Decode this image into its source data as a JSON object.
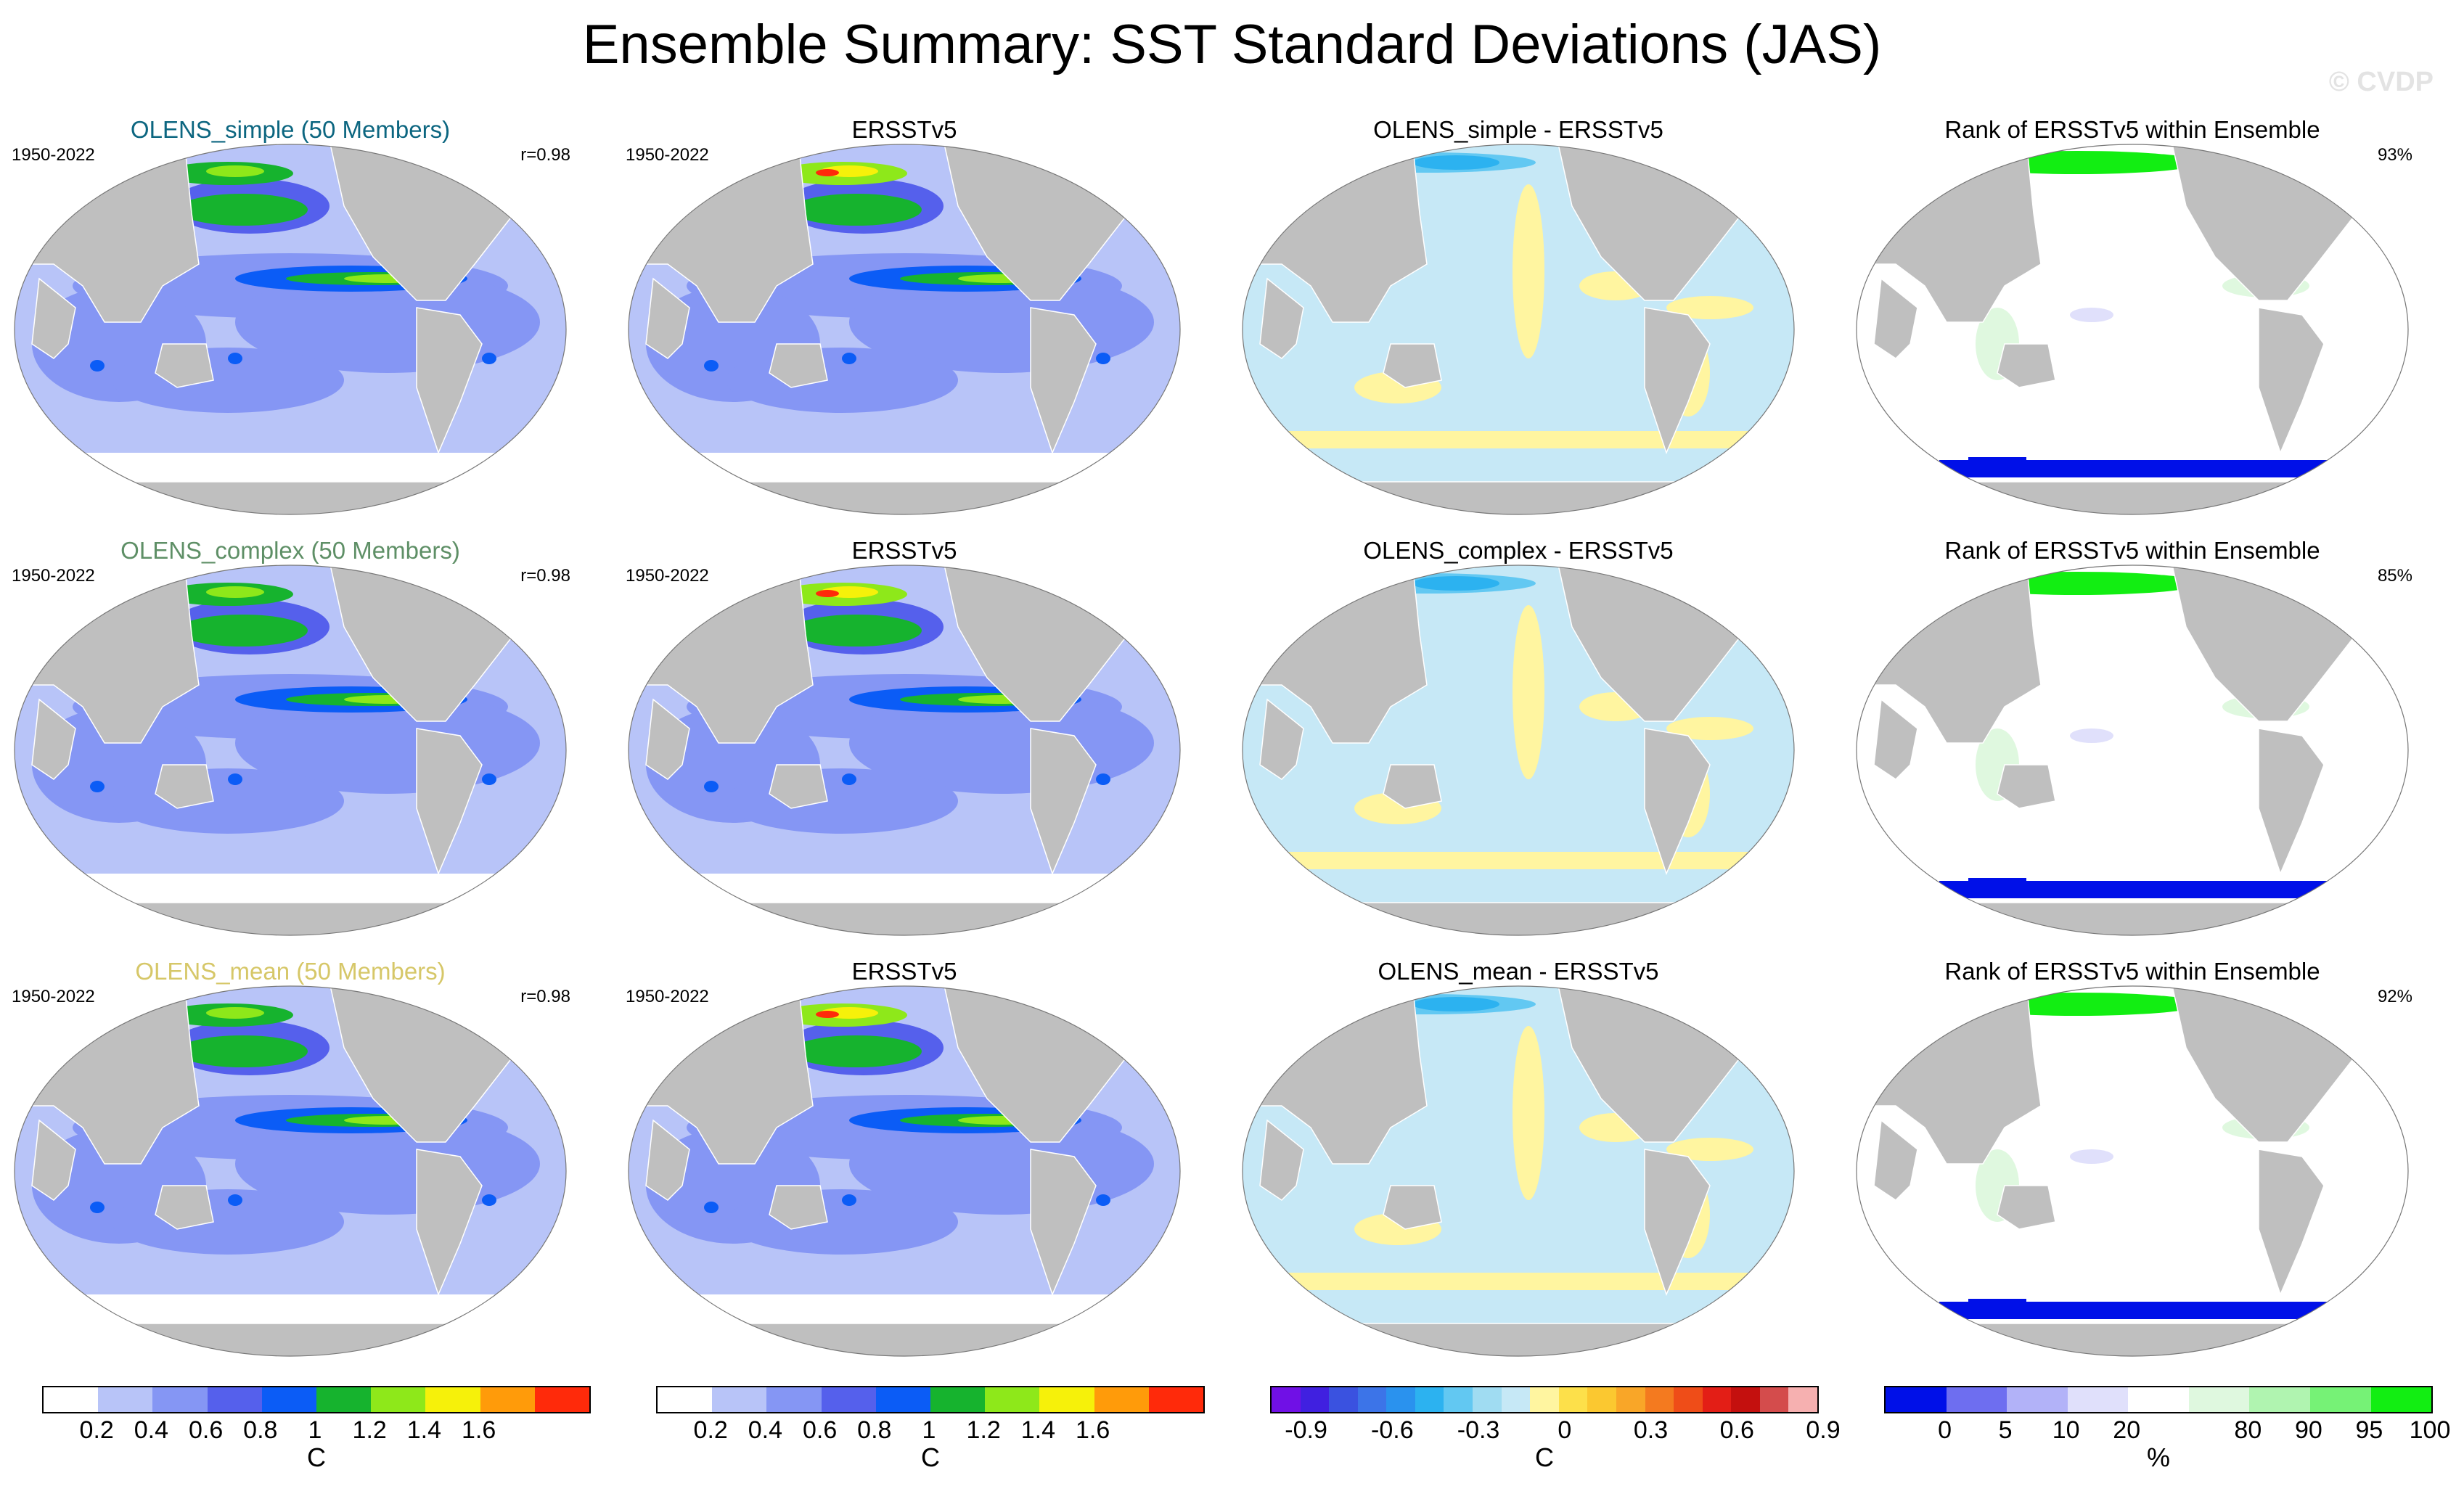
{
  "title": "Ensemble Summary: SST Standard Deviations (JAS)",
  "watermark": "© CVDP",
  "colors": {
    "land": "#bfbfbf",
    "ocean_edge": "#777777",
    "title_simple": "#0c6680",
    "title_complex": "#5e8f66",
    "title_mean": "#d6c768",
    "sd": [
      "#ffffff",
      "#b8c4f8",
      "#8596f4",
      "#5560ec",
      "#0b5cf6",
      "#16b32e",
      "#8ee81a",
      "#f6f10a",
      "#ff9b0a",
      "#ff2a0a"
    ],
    "diff": [
      "#7010e6",
      "#4020e0",
      "#3a52e0",
      "#3c74e8",
      "#2a92ee",
      "#2cb2f0",
      "#62c8f2",
      "#a0dcf2",
      "#c6e8f6",
      "#fff5a0",
      "#fde04a",
      "#fbc830",
      "#f9a628",
      "#f47a1f",
      "#ef4d18",
      "#e31e16",
      "#c4100e",
      "#d44c4c",
      "#f6b0b0"
    ],
    "rank": [
      "#0010e8",
      "#6e6ef0",
      "#b2b2f8",
      "#e0e0fb",
      "#ffffff",
      "#dff8df",
      "#b0f4b0",
      "#76f276",
      "#12ee12"
    ]
  },
  "rows": [
    {
      "model": {
        "title": "OLENS_simple (50 Members)",
        "years": "1950-2022",
        "r": "r=0.98",
        "title_color": "#0c6680"
      },
      "obs": {
        "title": "ERSSTv5",
        "years": "1950-2022"
      },
      "diff": {
        "title": "OLENS_simple - ERSSTv5"
      },
      "rank": {
        "title": "Rank of ERSSTv5 within Ensemble",
        "pct": "93%"
      }
    },
    {
      "model": {
        "title": "OLENS_complex (50 Members)",
        "years": "1950-2022",
        "r": "r=0.98",
        "title_color": "#5e8f66"
      },
      "obs": {
        "title": "ERSSTv5",
        "years": "1950-2022"
      },
      "diff": {
        "title": "OLENS_complex - ERSSTv5"
      },
      "rank": {
        "title": "Rank of ERSSTv5 within Ensemble",
        "pct": "85%"
      }
    },
    {
      "model": {
        "title": "OLENS_mean (50 Members)",
        "years": "1950-2022",
        "r": "r=0.98",
        "title_color": "#d6c768"
      },
      "obs": {
        "title": "ERSSTv5",
        "years": "1950-2022"
      },
      "diff": {
        "title": "OLENS_mean - ERSSTv5"
      },
      "rank": {
        "title": "Rank of ERSSTv5 within Ensemble",
        "pct": "92%"
      }
    }
  ],
  "colorbars": [
    {
      "ticks": [
        "0.2",
        "0.4",
        "0.6",
        "0.8",
        "1",
        "1.2",
        "1.4",
        "1.6"
      ],
      "unit": "C"
    },
    {
      "ticks": [
        "0.2",
        "0.4",
        "0.6",
        "0.8",
        "1",
        "1.2",
        "1.4",
        "1.6"
      ],
      "unit": "C"
    },
    {
      "ticks": [
        "-0.9",
        "-0.6",
        "-0.3",
        "0",
        "0.3",
        "0.6",
        "0.9"
      ],
      "unit": "C"
    },
    {
      "ticks": [
        "0",
        "5",
        "10",
        "20",
        "80",
        "90",
        "95",
        "100"
      ],
      "unit": "%"
    }
  ],
  "chart_data": [
    {
      "type": "heatmap",
      "title": "OLENS_simple (50 Members)",
      "period": "1950-2022",
      "pattern_correlation": 0.98,
      "variable": "SST standard deviation (JAS)",
      "units": "C",
      "levels": [
        0.2,
        0.4,
        0.6,
        0.8,
        1.0,
        1.2,
        1.4,
        1.6
      ],
      "features": {
        "central_eastern_equatorial_pacific_max": 1.2,
        "north_pacific_max": 1.0,
        "north_atlantic_max": 1.0,
        "southern_ocean": 0.2
      }
    },
    {
      "type": "heatmap",
      "title": "ERSSTv5",
      "period": "1950-2022",
      "variable": "SST standard deviation (JAS)",
      "units": "C",
      "levels": [
        0.2,
        0.4,
        0.6,
        0.8,
        1.0,
        1.2,
        1.4,
        1.6
      ],
      "features": {
        "central_eastern_equatorial_pacific_max": 1.2,
        "arctic_coastal_max": 1.6
      }
    },
    {
      "type": "heatmap",
      "title": "OLENS_simple - ERSSTv5",
      "units": "C",
      "levels": [
        -0.9,
        -0.6,
        -0.3,
        0,
        0.3,
        0.6,
        0.9
      ]
    },
    {
      "type": "heatmap",
      "title": "Rank of ERSSTv5 within Ensemble",
      "units": "%",
      "levels": [
        0,
        5,
        10,
        20,
        80,
        90,
        95,
        100
      ],
      "percent_within_ensemble_range": 93
    },
    {
      "type": "heatmap",
      "title": "OLENS_complex (50 Members)",
      "period": "1950-2022",
      "pattern_correlation": 0.98,
      "units": "C"
    },
    {
      "type": "heatmap",
      "title": "ERSSTv5",
      "period": "1950-2022",
      "units": "C"
    },
    {
      "type": "heatmap",
      "title": "OLENS_complex - ERSSTv5",
      "units": "C"
    },
    {
      "type": "heatmap",
      "title": "Rank of ERSSTv5 within Ensemble",
      "units": "%",
      "percent_within_ensemble_range": 85
    },
    {
      "type": "heatmap",
      "title": "OLENS_mean (50 Members)",
      "period": "1950-2022",
      "pattern_correlation": 0.98,
      "units": "C"
    },
    {
      "type": "heatmap",
      "title": "ERSSTv5",
      "period": "1950-2022",
      "units": "C"
    },
    {
      "type": "heatmap",
      "title": "OLENS_mean - ERSSTv5",
      "units": "C"
    },
    {
      "type": "heatmap",
      "title": "Rank of ERSSTv5 within Ensemble",
      "units": "%",
      "percent_within_ensemble_range": 92
    }
  ]
}
